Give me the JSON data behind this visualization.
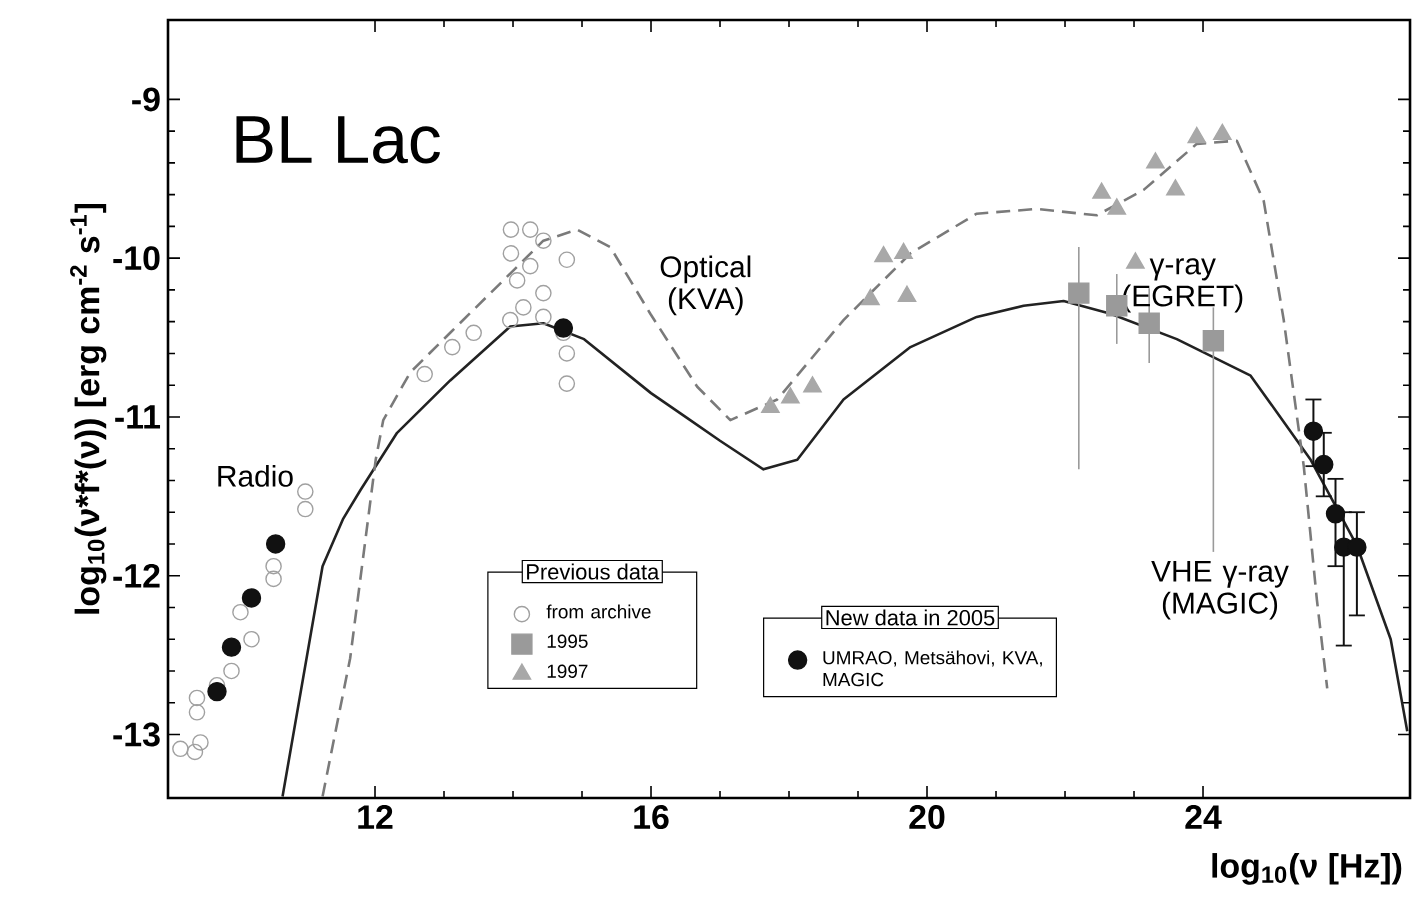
{
  "chart_data": {
    "type": "scatter",
    "title": "BL Lac",
    "xlabel": "log$_{10}$(ν [Hz])",
    "ylabel": "log$_{10}$(ν*f*(ν)) [erg cm$^{-2}$ s$^{-1}$]",
    "xlim": [
      9,
      27
    ],
    "ylim": [
      -13.4,
      -8.5
    ],
    "xticks": [
      12,
      16,
      20,
      24
    ],
    "yticks": [
      -13,
      -12,
      -11,
      -10,
      -9
    ],
    "legend": "bottom",
    "legend_title": "Previous data",
    "annotations": [
      "Radio",
      "Optical (KVA)",
      "γ-ray (EGRET)",
      "VHE γ-ray (MAGIC)",
      "New data in 2005"
    ],
    "series": [
      {
        "type": "line",
        "color": "#222222",
        "line_style": "solid",
        "marker": "none",
        "x": [
          10.66,
          11.24,
          11.54,
          11.79,
          12.32,
          13.09,
          13.96,
          14.44,
          15.03,
          16.0,
          16.5,
          17.0,
          17.63,
          18.12,
          18.79,
          19.76,
          20.72,
          21.4,
          21.98,
          22.66,
          23.62,
          24.69,
          25.07,
          25.56,
          26.23,
          26.72,
          26.96
        ],
        "values": [
          -13.39,
          -11.94,
          -11.64,
          -11.46,
          -11.1,
          -10.77,
          -10.43,
          -10.41,
          -10.51,
          -10.85,
          -11.0,
          -11.15,
          -11.33,
          -11.27,
          -10.89,
          -10.56,
          -10.37,
          -10.3,
          -10.27,
          -10.35,
          -10.51,
          -10.74,
          -10.97,
          -11.27,
          -11.81,
          -12.4,
          -12.98
        ]
      },
      {
        "type": "line",
        "color": "#7a7a7a",
        "line_style": "dashed",
        "marker": "none",
        "x": [
          11.24,
          11.64,
          12.01,
          12.12,
          12.51,
          13.09,
          13.86,
          14.44,
          14.93,
          15.41,
          15.99,
          16.67,
          17.15,
          17.83,
          18.79,
          19.76,
          20.72,
          21.59,
          22.46,
          23.14,
          23.91,
          24.49,
          24.88,
          25.17,
          25.46,
          25.65,
          25.8
        ],
        "values": [
          -13.39,
          -12.52,
          -11.27,
          -11.02,
          -10.72,
          -10.47,
          -10.14,
          -9.89,
          -9.82,
          -9.93,
          -10.35,
          -10.81,
          -11.02,
          -10.89,
          -10.39,
          -9.97,
          -9.72,
          -9.69,
          -9.73,
          -9.57,
          -9.28,
          -9.26,
          -9.64,
          -10.39,
          -11.31,
          -12.15,
          -12.71
        ]
      },
      {
        "name": "from archive",
        "color": "#a0a0a0",
        "marker": "circle",
        "x": [
          9.18,
          9.39,
          9.47,
          9.42,
          9.42,
          9.71,
          9.92,
          10.21,
          10.05,
          10.53,
          10.53,
          10.99,
          10.99,
          12.72,
          13.12,
          13.43,
          13.96,
          13.97,
          13.97,
          14.06,
          14.25,
          14.25,
          14.44,
          14.44,
          14.15,
          14.78,
          14.78,
          14.78,
          14.73,
          14.44
        ],
        "values": [
          -13.09,
          -13.11,
          -13.05,
          -12.77,
          -12.86,
          -12.69,
          -12.6,
          -12.4,
          -12.23,
          -12.02,
          -11.94,
          -11.47,
          -11.58,
          -10.73,
          -10.56,
          -10.47,
          -10.39,
          -9.82,
          -9.97,
          -10.14,
          -9.82,
          -10.05,
          -9.89,
          -10.22,
          -10.31,
          -10.01,
          -10.6,
          -10.79,
          -10.47,
          -10.37
        ]
      },
      {
        "name": "1995",
        "color": "#9a9a9a",
        "marker": "square",
        "x": [
          22.2,
          22.75,
          23.22,
          24.15
        ],
        "values": [
          -10.22,
          -10.3,
          -10.41,
          -10.52
        ],
        "errors": [
          [
            -11.33,
            -9.93
          ],
          [
            -10.54,
            -10.1
          ],
          [
            -10.66,
            -10.19
          ],
          [
            -11.85,
            -10.31
          ]
        ]
      },
      {
        "name": "1997",
        "color": "#a8a8a8",
        "marker": "triangle",
        "x": [
          17.73,
          18.02,
          18.34,
          19.18,
          19.37,
          19.66,
          19.71,
          22.53,
          22.75,
          23.02,
          23.31,
          23.6,
          23.91,
          24.28
        ],
        "values": [
          -10.94,
          -10.88,
          -10.81,
          -10.26,
          -9.99,
          -9.97,
          -10.24,
          -9.59,
          -9.69,
          -10.03,
          -9.4,
          -9.57,
          -9.24,
          -9.22
        ]
      },
      {
        "name": "UMRAO, Metsähovi, KVA, MAGIC",
        "color": "#111111",
        "marker": "circle",
        "x": [
          9.71,
          9.92,
          10.21,
          10.56,
          14.73,
          25.6,
          25.75,
          25.92,
          26.04,
          26.23
        ],
        "values": [
          -12.73,
          -12.45,
          -12.14,
          -11.8,
          -10.44,
          -11.09,
          -11.3,
          -11.61,
          -11.82,
          -11.82
        ],
        "errors": [
          null,
          null,
          null,
          null,
          null,
          [
            -11.31,
            -10.89
          ],
          [
            -11.5,
            -11.1
          ],
          [
            -11.94,
            -11.39
          ],
          [
            -12.44,
            -11.6
          ],
          [
            -12.25,
            -11.6
          ]
        ]
      }
    ]
  }
}
